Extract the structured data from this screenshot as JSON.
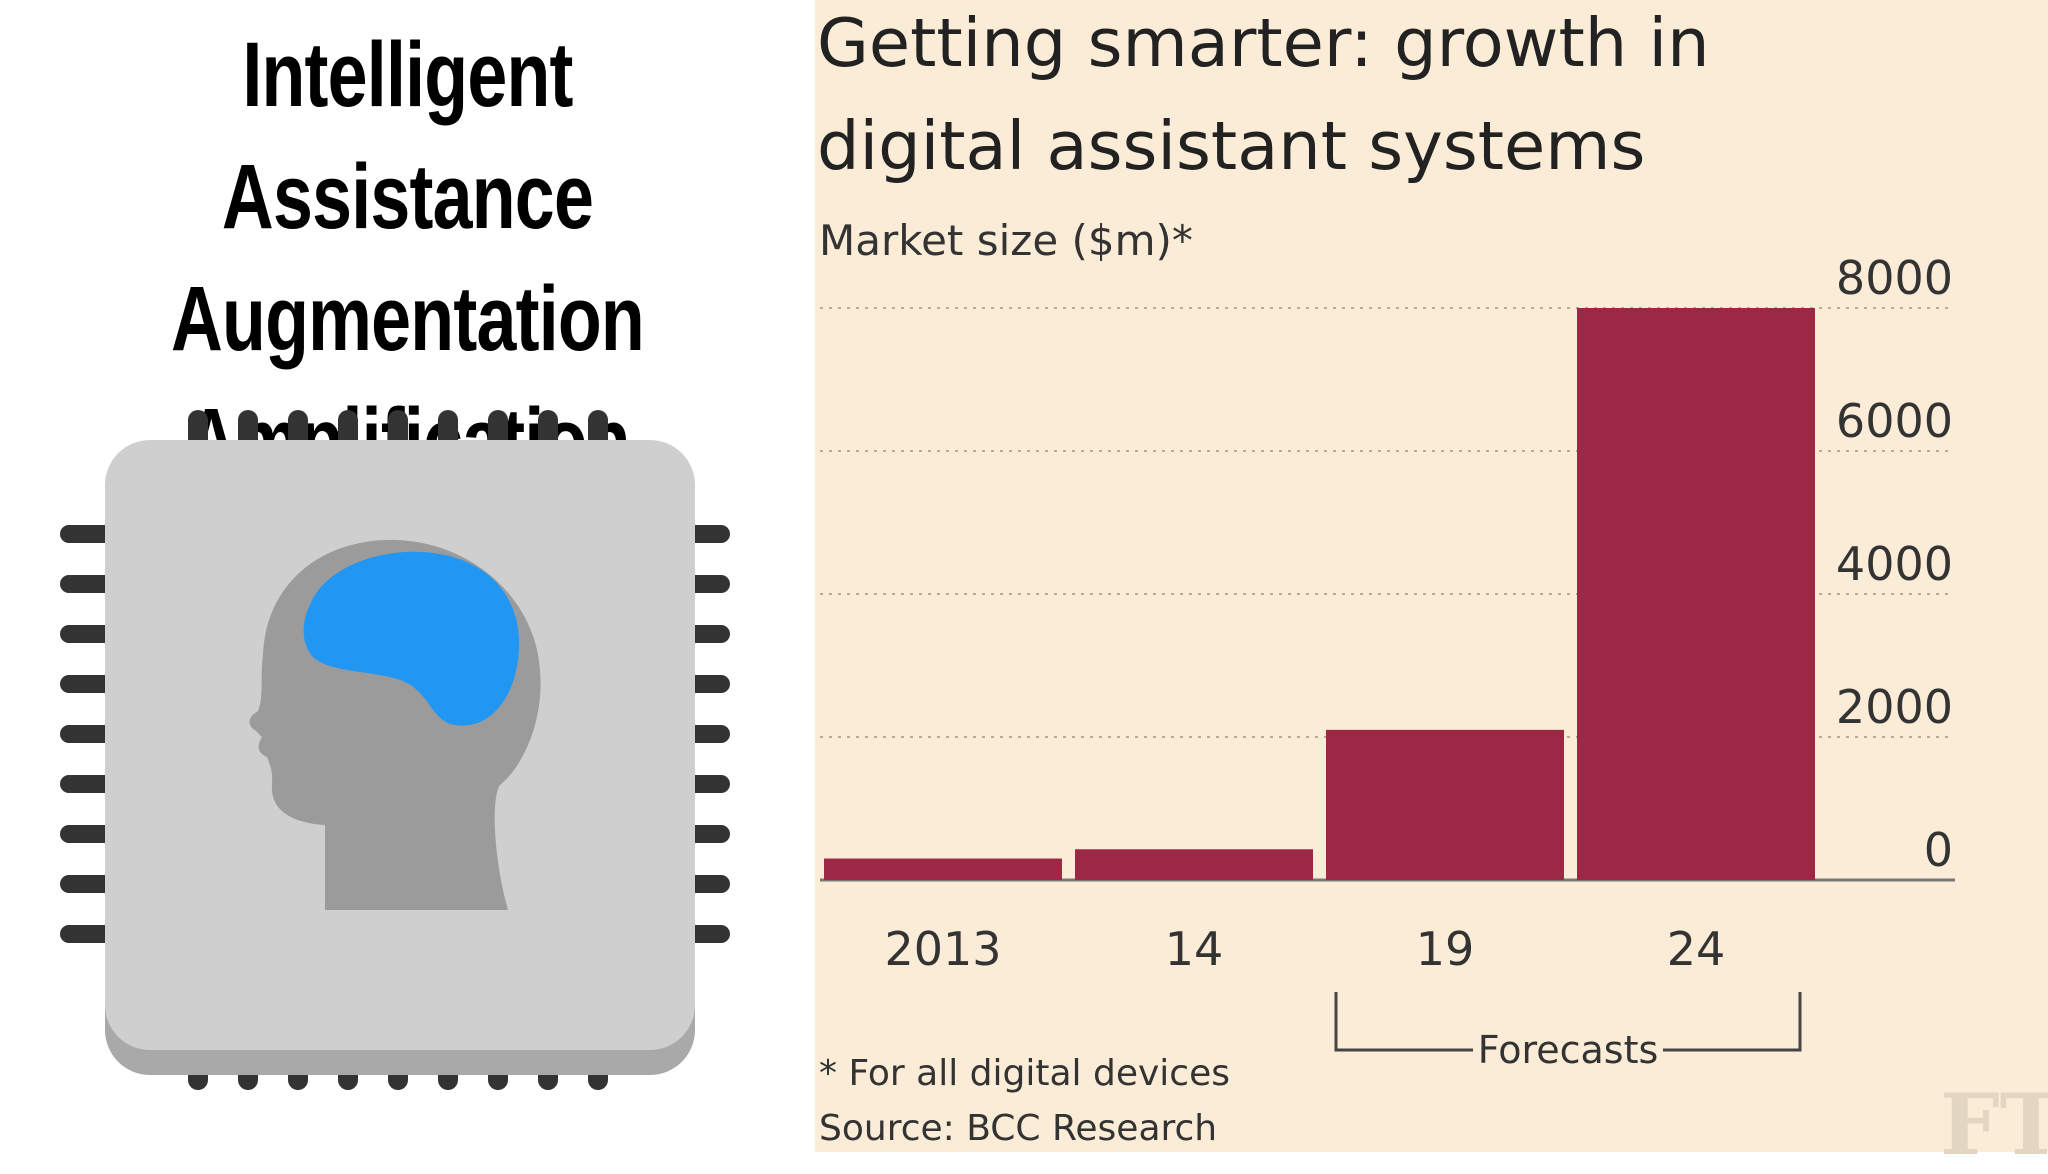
{
  "headline": {
    "lines": [
      "Intelligent Assistance",
      "Augmentation",
      "Amplification"
    ]
  },
  "illustration": {
    "icon": "ai-chip-brain-icon",
    "colors": {
      "chip": "#cfcfcf",
      "chip_shadow": "#a9a9a9",
      "pins": "#333333",
      "head": "#9b9b9b",
      "brain": "#2196f3"
    }
  },
  "chart_data": {
    "type": "bar",
    "title_lines": [
      "Getting smarter: growth in",
      "digital assistant systems"
    ],
    "ylabel": "Market size ($m)*",
    "xlabel": "",
    "categories": [
      "2013",
      "14",
      "19",
      "24"
    ],
    "values": [
      300,
      430,
      2100,
      8000
    ],
    "ylim": [
      0,
      8000
    ],
    "yticks": [
      0,
      2000,
      4000,
      6000,
      8000
    ],
    "y_axis_side": "right",
    "grid": "dotted horizontal",
    "bar_color": "#9b2845",
    "annotation": {
      "label": "Forecasts",
      "covers": [
        "19",
        "24"
      ]
    },
    "footnote": "* For all digital devices",
    "source": "Source: BCC Research",
    "logo": "FT"
  }
}
